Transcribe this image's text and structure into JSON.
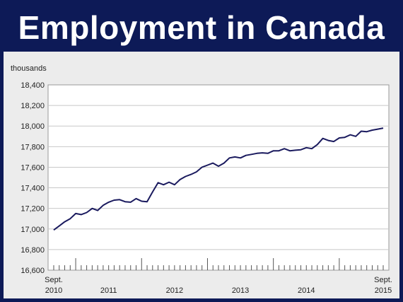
{
  "banner": {
    "title": "Employment in Canada"
  },
  "colors": {
    "frame": "#0d1a57",
    "panel_background": "#ececec",
    "plot_background": "#ffffff",
    "line": "#1a1a5e",
    "grid": "#c8c8c8"
  },
  "chart_data": {
    "type": "line",
    "title": "Employment in Canada",
    "ylabel": "thousands",
    "xlabel": "",
    "ylim": [
      16600,
      18400
    ],
    "yticks": [
      "16,600",
      "16,800",
      "17,000",
      "17,200",
      "17,400",
      "17,600",
      "17,800",
      "18,000",
      "18,200",
      "18,400"
    ],
    "grid": "horizontal",
    "x_start": "2010-09",
    "x_end": "2015-09",
    "x_labels": [
      {
        "line1": "Sept.",
        "line2": "2010"
      },
      {
        "line1": "",
        "line2": "2011"
      },
      {
        "line1": "",
        "line2": "2012"
      },
      {
        "line1": "",
        "line2": "2013"
      },
      {
        "line1": "",
        "line2": "2014"
      },
      {
        "line1": "Sept.",
        "line2": "2015"
      }
    ],
    "series": [
      {
        "values": [
          16990,
          17030,
          17070,
          17100,
          17150,
          17140,
          17160,
          17200,
          17180,
          17230,
          17260,
          17280,
          17285,
          17265,
          17260,
          17295,
          17270,
          17265,
          17360,
          17450,
          17430,
          17455,
          17430,
          17480,
          17510,
          17530,
          17555,
          17600,
          17620,
          17640,
          17610,
          17640,
          17690,
          17700,
          17690,
          17715,
          17725,
          17735,
          17740,
          17735,
          17760,
          17760,
          17780,
          17760,
          17765,
          17770,
          17790,
          17780,
          17820,
          17880,
          17860,
          17850,
          17885,
          17890,
          17915,
          17900,
          17950,
          17945,
          17960,
          17970,
          17980
        ]
      }
    ]
  }
}
